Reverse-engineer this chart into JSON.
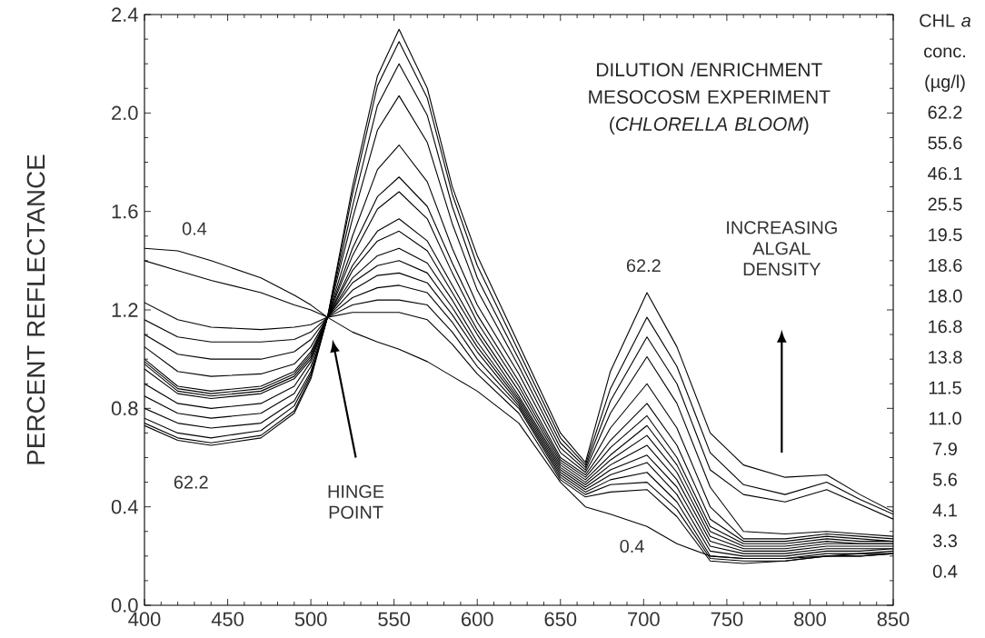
{
  "chart_data": {
    "type": "line",
    "title": "DILUTION /ENRICHMENT MESOCOSM EXPERIMENT (*CHLORELLA BLOOM*)",
    "ylabel": "PERCENT REFLECTANCE",
    "legend_title": "CHL *a* conc. (µg/l)",
    "legend": "right",
    "line_style": "solid",
    "xlim": [
      400,
      850
    ],
    "ylim": [
      0,
      2.4
    ],
    "xticks": [
      400,
      450,
      500,
      550,
      600,
      650,
      700,
      750,
      800,
      850
    ],
    "yticks": [
      {
        "value": 0,
        "label": "0.0"
      },
      0.4,
      0.8,
      1.2,
      1.6,
      {
        "value": 2.0,
        "label": "2.0"
      },
      2.4
    ],
    "x": [
      400,
      420,
      440,
      470,
      490,
      500,
      510,
      525,
      540,
      553,
      570,
      585,
      600,
      625,
      650,
      665,
      680,
      702,
      720,
      740,
      760,
      785,
      810,
      830,
      850
    ],
    "series": [
      {
        "name": "62.2",
        "color": "#000000",
        "values": [
          0.73,
          0.67,
          0.65,
          0.68,
          0.78,
          0.92,
          1.17,
          1.7,
          2.15,
          2.34,
          2.1,
          1.7,
          1.42,
          1.06,
          0.7,
          0.58,
          0.95,
          1.27,
          1.05,
          0.7,
          0.57,
          0.52,
          0.53,
          0.45,
          0.38
        ]
      },
      {
        "name": "55.6",
        "color": "#000000",
        "values": [
          0.74,
          0.68,
          0.66,
          0.69,
          0.79,
          0.93,
          1.17,
          1.67,
          2.11,
          2.29,
          2.06,
          1.67,
          1.38,
          1.03,
          0.68,
          0.57,
          0.88,
          1.17,
          0.97,
          0.62,
          0.49,
          0.45,
          0.5,
          0.43,
          0.37
        ]
      },
      {
        "name": "46.1",
        "color": "#000000",
        "values": [
          0.76,
          0.7,
          0.68,
          0.71,
          0.81,
          0.94,
          1.17,
          1.62,
          2.03,
          2.2,
          1.99,
          1.62,
          1.33,
          1.0,
          0.66,
          0.56,
          0.83,
          1.09,
          0.9,
          0.55,
          0.45,
          0.42,
          0.47,
          0.41,
          0.35
        ]
      },
      {
        "name": "25.5",
        "color": "#000000",
        "values": [
          0.8,
          0.74,
          0.72,
          0.74,
          0.83,
          0.95,
          1.17,
          1.57,
          1.93,
          2.07,
          1.88,
          1.55,
          1.28,
          0.97,
          0.64,
          0.55,
          0.78,
          1.01,
          0.82,
          0.48,
          0.3,
          0.29,
          0.3,
          0.29,
          0.28
        ]
      },
      {
        "name": "19.5",
        "color": "#000000",
        "values": [
          0.85,
          0.78,
          0.76,
          0.78,
          0.86,
          0.97,
          1.17,
          1.5,
          1.77,
          1.87,
          1.72,
          1.45,
          1.22,
          0.94,
          0.62,
          0.54,
          0.72,
          0.9,
          0.72,
          0.4,
          0.27,
          0.27,
          0.29,
          0.28,
          0.27
        ]
      },
      {
        "name": "18.6",
        "color": "#000000",
        "values": [
          0.9,
          0.82,
          0.8,
          0.82,
          0.89,
          0.99,
          1.17,
          1.45,
          1.66,
          1.74,
          1.62,
          1.39,
          1.18,
          0.91,
          0.6,
          0.53,
          0.67,
          0.82,
          0.65,
          0.35,
          0.26,
          0.26,
          0.28,
          0.27,
          0.26
        ]
      },
      {
        "name": "18.0",
        "color": "#000000",
        "values": [
          0.96,
          0.86,
          0.84,
          0.86,
          0.92,
          1.0,
          1.17,
          1.42,
          1.61,
          1.68,
          1.57,
          1.35,
          1.15,
          0.89,
          0.59,
          0.52,
          0.64,
          0.77,
          0.6,
          0.32,
          0.25,
          0.25,
          0.27,
          0.26,
          0.26
        ]
      },
      {
        "name": "16.8",
        "color": "#000000",
        "values": [
          0.98,
          0.87,
          0.85,
          0.87,
          0.93,
          1.01,
          1.17,
          1.38,
          1.52,
          1.57,
          1.48,
          1.3,
          1.12,
          0.87,
          0.58,
          0.51,
          0.61,
          0.73,
          0.57,
          0.3,
          0.24,
          0.24,
          0.26,
          0.25,
          0.25
        ]
      },
      {
        "name": "13.8",
        "color": "#000000",
        "values": [
          0.99,
          0.88,
          0.86,
          0.88,
          0.94,
          1.02,
          1.17,
          1.36,
          1.48,
          1.52,
          1.44,
          1.27,
          1.1,
          0.85,
          0.57,
          0.5,
          0.59,
          0.69,
          0.54,
          0.28,
          0.23,
          0.23,
          0.25,
          0.25,
          0.25
        ]
      },
      {
        "name": "11.5",
        "color": "#000000",
        "values": [
          1.0,
          0.89,
          0.87,
          0.89,
          0.95,
          1.03,
          1.17,
          1.33,
          1.42,
          1.45,
          1.39,
          1.24,
          1.07,
          0.84,
          0.56,
          0.49,
          0.57,
          0.65,
          0.51,
          0.26,
          0.22,
          0.22,
          0.24,
          0.24,
          0.24
        ]
      },
      {
        "name": "11.0",
        "color": "#000000",
        "values": [
          1.05,
          0.95,
          0.93,
          0.94,
          0.98,
          1.05,
          1.17,
          1.31,
          1.38,
          1.4,
          1.35,
          1.21,
          1.05,
          0.83,
          0.55,
          0.48,
          0.55,
          0.61,
          0.48,
          0.24,
          0.21,
          0.21,
          0.23,
          0.23,
          0.23
        ]
      },
      {
        "name": "7.9",
        "color": "#000000",
        "values": [
          1.1,
          1.02,
          1.0,
          1.0,
          1.03,
          1.08,
          1.17,
          1.28,
          1.34,
          1.35,
          1.31,
          1.18,
          1.03,
          0.82,
          0.54,
          0.47,
          0.53,
          0.58,
          0.45,
          0.22,
          0.2,
          0.2,
          0.22,
          0.22,
          0.23
        ]
      },
      {
        "name": "5.6",
        "color": "#000000",
        "values": [
          1.16,
          1.09,
          1.07,
          1.07,
          1.08,
          1.11,
          1.17,
          1.25,
          1.29,
          1.3,
          1.27,
          1.15,
          1.0,
          0.81,
          0.53,
          0.46,
          0.51,
          0.54,
          0.42,
          0.2,
          0.19,
          0.19,
          0.21,
          0.21,
          0.22
        ]
      },
      {
        "name": "4.1",
        "color": "#000000",
        "values": [
          1.23,
          1.16,
          1.13,
          1.12,
          1.13,
          1.14,
          1.17,
          1.22,
          1.24,
          1.24,
          1.22,
          1.11,
          0.97,
          0.8,
          0.52,
          0.45,
          0.49,
          0.5,
          0.39,
          0.19,
          0.18,
          0.18,
          0.2,
          0.2,
          0.21
        ]
      },
      {
        "name": "3.3",
        "color": "#000000",
        "values": [
          1.4,
          1.36,
          1.32,
          1.27,
          1.22,
          1.2,
          1.17,
          1.19,
          1.19,
          1.19,
          1.16,
          1.06,
          0.94,
          0.78,
          0.51,
          0.44,
          0.46,
          0.47,
          0.36,
          0.18,
          0.17,
          0.18,
          0.2,
          0.2,
          0.21
        ]
      },
      {
        "name": "0.4",
        "color": "#000000",
        "values": [
          1.45,
          1.44,
          1.4,
          1.33,
          1.26,
          1.22,
          1.17,
          1.11,
          1.07,
          1.04,
          0.99,
          0.93,
          0.87,
          0.74,
          0.5,
          0.4,
          0.37,
          0.32,
          0.25,
          0.2,
          0.19,
          0.19,
          0.2,
          0.21,
          0.21
        ]
      }
    ],
    "annotations": [
      "0.4",
      "62.2",
      "HINGE POINT",
      "62.2",
      "0.4",
      "INCREASING ALGAL DENSITY"
    ]
  }
}
